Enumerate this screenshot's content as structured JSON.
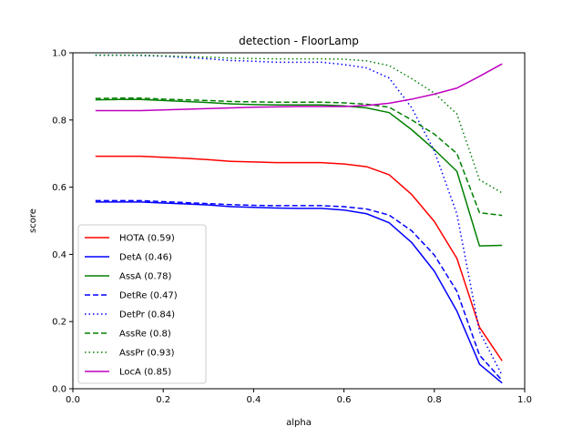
{
  "chart_data": {
    "type": "line",
    "title": "detection - FloorLamp",
    "xlabel": "alpha",
    "ylabel": "score",
    "xlim": [
      0.0,
      1.0
    ],
    "ylim": [
      0.0,
      1.0
    ],
    "xticks": [
      "0.0",
      "0.2",
      "0.4",
      "0.6",
      "0.8",
      "1.0"
    ],
    "yticks": [
      "0.0",
      "0.2",
      "0.4",
      "0.6",
      "0.8",
      "1.0"
    ],
    "grid": false,
    "legend_position": "lower-left",
    "x": [
      0.05,
      0.1,
      0.15,
      0.2,
      0.25,
      0.3,
      0.35,
      0.4,
      0.45,
      0.5,
      0.55,
      0.6,
      0.65,
      0.7,
      0.75,
      0.8,
      0.85,
      0.9,
      0.95
    ],
    "series": [
      {
        "name": "HOTA (0.59)",
        "color": "#ff0000",
        "dash": "solid",
        "values": [
          0.692,
          0.692,
          0.692,
          0.689,
          0.686,
          0.682,
          0.677,
          0.675,
          0.673,
          0.673,
          0.673,
          0.669,
          0.661,
          0.637,
          0.578,
          0.498,
          0.388,
          0.183,
          0.083
        ]
      },
      {
        "name": "DetA (0.46)",
        "color": "#0000ff",
        "dash": "solid",
        "values": [
          0.556,
          0.556,
          0.556,
          0.553,
          0.55,
          0.547,
          0.542,
          0.54,
          0.538,
          0.537,
          0.537,
          0.532,
          0.521,
          0.494,
          0.435,
          0.35,
          0.231,
          0.073,
          0.017
        ]
      },
      {
        "name": "AssA (0.78)",
        "color": "#008000",
        "dash": "solid",
        "values": [
          0.86,
          0.861,
          0.861,
          0.858,
          0.855,
          0.852,
          0.848,
          0.846,
          0.845,
          0.845,
          0.845,
          0.842,
          0.836,
          0.822,
          0.771,
          0.712,
          0.647,
          0.425,
          0.427
        ]
      },
      {
        "name": "DetRe (0.47)",
        "color": "#0000ff",
        "dash": "dashed",
        "values": [
          0.56,
          0.56,
          0.56,
          0.557,
          0.554,
          0.551,
          0.548,
          0.546,
          0.545,
          0.545,
          0.545,
          0.542,
          0.535,
          0.517,
          0.47,
          0.398,
          0.29,
          0.1,
          0.025
        ]
      },
      {
        "name": "DetPr (0.84)",
        "color": "#0000ff",
        "dash": "dotted",
        "values": [
          0.993,
          0.993,
          0.992,
          0.99,
          0.986,
          0.982,
          0.977,
          0.975,
          0.972,
          0.972,
          0.972,
          0.965,
          0.955,
          0.925,
          0.836,
          0.708,
          0.52,
          0.17,
          0.04
        ]
      },
      {
        "name": "AssRe (0.8)",
        "color": "#008000",
        "dash": "dashed",
        "values": [
          0.864,
          0.865,
          0.865,
          0.862,
          0.86,
          0.858,
          0.855,
          0.854,
          0.853,
          0.853,
          0.853,
          0.851,
          0.847,
          0.838,
          0.8,
          0.758,
          0.7,
          0.524,
          0.516
        ]
      },
      {
        "name": "AssPr (0.93)",
        "color": "#008000",
        "dash": "dotted",
        "values": [
          0.993,
          0.993,
          0.993,
          0.991,
          0.989,
          0.987,
          0.984,
          0.983,
          0.982,
          0.982,
          0.982,
          0.981,
          0.976,
          0.962,
          0.923,
          0.88,
          0.818,
          0.622,
          0.583
        ]
      },
      {
        "name": "LocA (0.85)",
        "color": "#bf00bf",
        "dash": "solid",
        "values": [
          0.828,
          0.828,
          0.828,
          0.83,
          0.832,
          0.834,
          0.836,
          0.838,
          0.839,
          0.84,
          0.84,
          0.84,
          0.843,
          0.85,
          0.862,
          0.877,
          0.895,
          0.93,
          0.967
        ]
      }
    ]
  }
}
